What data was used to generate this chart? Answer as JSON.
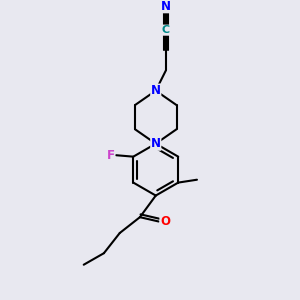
{
  "bg_color": "#e8e8f0",
  "bond_color": "#000000",
  "N_color": "#0000ff",
  "O_color": "#ff0000",
  "F_color": "#cc44cc",
  "line_width": 1.5,
  "figsize": [
    3.0,
    3.0
  ],
  "dpi": 100,
  "xlim": [
    0,
    10
  ],
  "ylim": [
    0,
    10
  ]
}
